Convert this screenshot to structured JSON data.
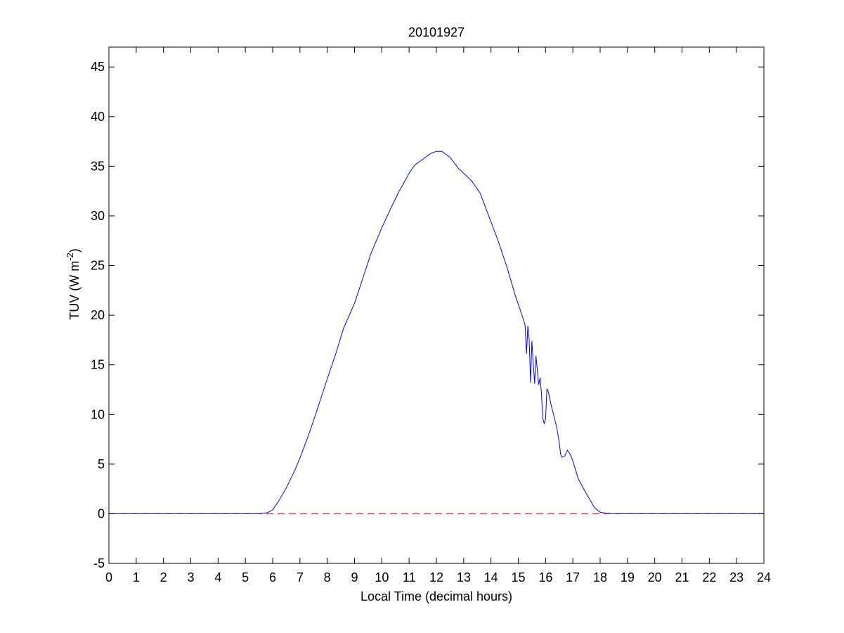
{
  "colors": {
    "background": "#ffffff",
    "axes": "#000000",
    "series": "#0000ff",
    "reference": "#ff0000"
  },
  "chart_data": {
    "type": "line",
    "title": "20101927",
    "xlabel": "Local Time (decimal hours)",
    "ylabel": "TUV (W m^-2)",
    "xlim": [
      0,
      24
    ],
    "ylim": [
      -5,
      47
    ],
    "xticks": [
      0,
      1,
      2,
      3,
      4,
      5,
      6,
      7,
      8,
      9,
      10,
      11,
      12,
      13,
      14,
      15,
      16,
      17,
      18,
      19,
      20,
      21,
      22,
      23,
      24
    ],
    "yticks": [
      -5,
      0,
      5,
      10,
      15,
      20,
      25,
      30,
      35,
      40,
      45
    ],
    "grid": false,
    "legend": "none",
    "series": [
      {
        "color": "#0000ff",
        "style": "solid",
        "x": [
          0,
          5.5,
          5.8,
          6.0,
          6.2,
          6.5,
          6.8,
          7.0,
          7.3,
          7.6,
          8.0,
          8.3,
          8.6,
          9.0,
          9.3,
          9.6,
          10.0,
          10.3,
          10.6,
          11.0,
          11.2,
          11.5,
          11.8,
          12.0,
          12.2,
          12.5,
          12.8,
          13.0,
          13.3,
          13.6,
          14.0,
          14.3,
          14.6,
          14.9,
          15.1,
          15.25,
          15.3,
          15.35,
          15.4,
          15.45,
          15.5,
          15.55,
          15.6,
          15.65,
          15.7,
          15.75,
          15.8,
          15.85,
          15.9,
          15.95,
          16.0,
          16.05,
          16.1,
          16.2,
          16.3,
          16.4,
          16.5,
          16.55,
          16.6,
          16.7,
          16.8,
          16.9,
          17.0,
          17.2,
          17.5,
          17.8,
          18.0,
          18.2,
          18.4,
          18.7,
          24
        ],
        "y": [
          0,
          0,
          0.1,
          0.4,
          1.2,
          2.6,
          4.3,
          5.6,
          7.8,
          10.2,
          13.6,
          16.0,
          18.7,
          21.2,
          23.7,
          26.2,
          28.8,
          30.6,
          32.3,
          34.3,
          35.1,
          35.7,
          36.3,
          36.5,
          36.5,
          35.9,
          34.8,
          34.3,
          33.5,
          32.3,
          29.4,
          27.2,
          24.7,
          21.9,
          20.3,
          19.0,
          16.1,
          18.9,
          17.6,
          13.2,
          17.4,
          15.0,
          13.1,
          15.9,
          14.4,
          13.0,
          13.7,
          12.1,
          9.6,
          9.1,
          9.5,
          12.6,
          12.3,
          11.0,
          9.9,
          8.8,
          7.2,
          6.0,
          5.7,
          5.8,
          6.4,
          6.0,
          5.3,
          3.5,
          2.0,
          0.6,
          0.15,
          0.05,
          0.02,
          0,
          0
        ]
      },
      {
        "color": "#ff0000",
        "style": "dashed",
        "x": [
          0,
          24
        ],
        "y": [
          0,
          0
        ]
      }
    ]
  }
}
